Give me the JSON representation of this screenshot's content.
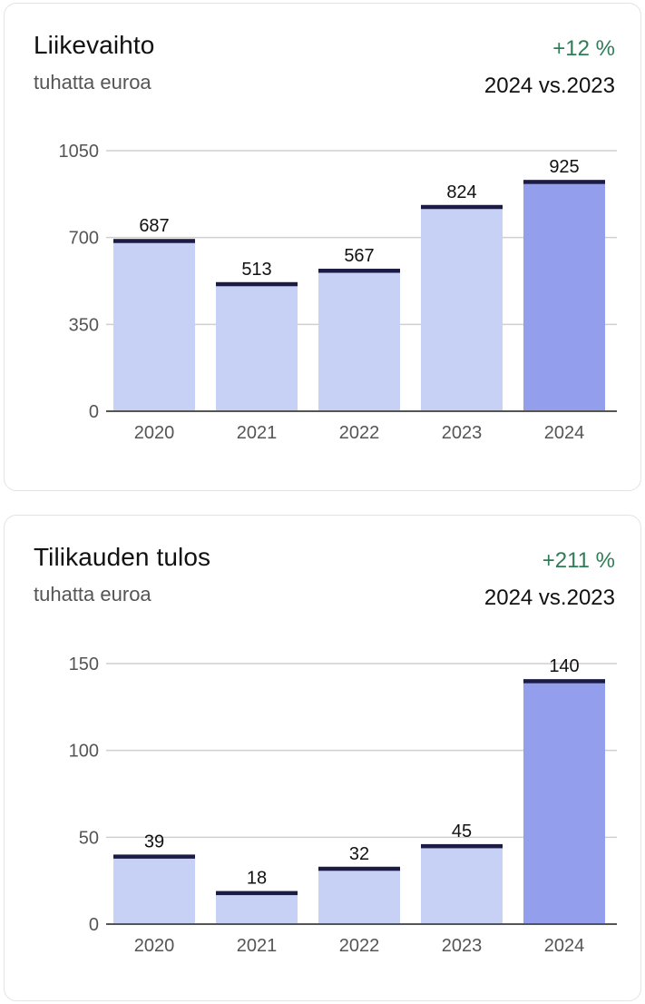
{
  "colors": {
    "bar": "#c7d0f5",
    "bar_highlight": "#939fec",
    "bar_cap": "#1c1b44",
    "grid": "#cfcfcf",
    "axis": "#555555",
    "change_positive": "#2e7d57"
  },
  "cards": [
    {
      "title": "Liikevaihto",
      "subtitle": "tuhatta euroa",
      "change": "+12 %",
      "period": "2024 vs.2023"
    },
    {
      "title": "Tilikauden tulos",
      "subtitle": "tuhatta euroa",
      "change": "+211 %",
      "period": "2024 vs.2023"
    }
  ],
  "chart_data": [
    {
      "type": "bar",
      "title": "Liikevaihto",
      "subtitle": "tuhatta euroa",
      "categories": [
        "2020",
        "2021",
        "2022",
        "2023",
        "2024"
      ],
      "values": [
        687,
        513,
        567,
        824,
        925
      ],
      "value_labels": [
        "687",
        "513",
        "567",
        "824",
        "925"
      ],
      "yticks": [
        0,
        350,
        700,
        1050
      ],
      "ytick_labels": [
        "0",
        "350",
        "700",
        "1050"
      ],
      "ylim": [
        0,
        1050
      ],
      "highlight_index": 4,
      "grid": true,
      "legend": "none"
    },
    {
      "type": "bar",
      "title": "Tilikauden tulos",
      "subtitle": "tuhatta euroa",
      "categories": [
        "2020",
        "2021",
        "2022",
        "2023",
        "2024"
      ],
      "values": [
        39,
        18,
        32,
        45,
        140
      ],
      "value_labels": [
        "39",
        "18",
        "32",
        "45",
        "140"
      ],
      "yticks": [
        0,
        50,
        100,
        150
      ],
      "ytick_labels": [
        "0",
        "50",
        "100",
        "150"
      ],
      "ylim": [
        0,
        150
      ],
      "highlight_index": 4,
      "grid": true,
      "legend": "none"
    }
  ]
}
